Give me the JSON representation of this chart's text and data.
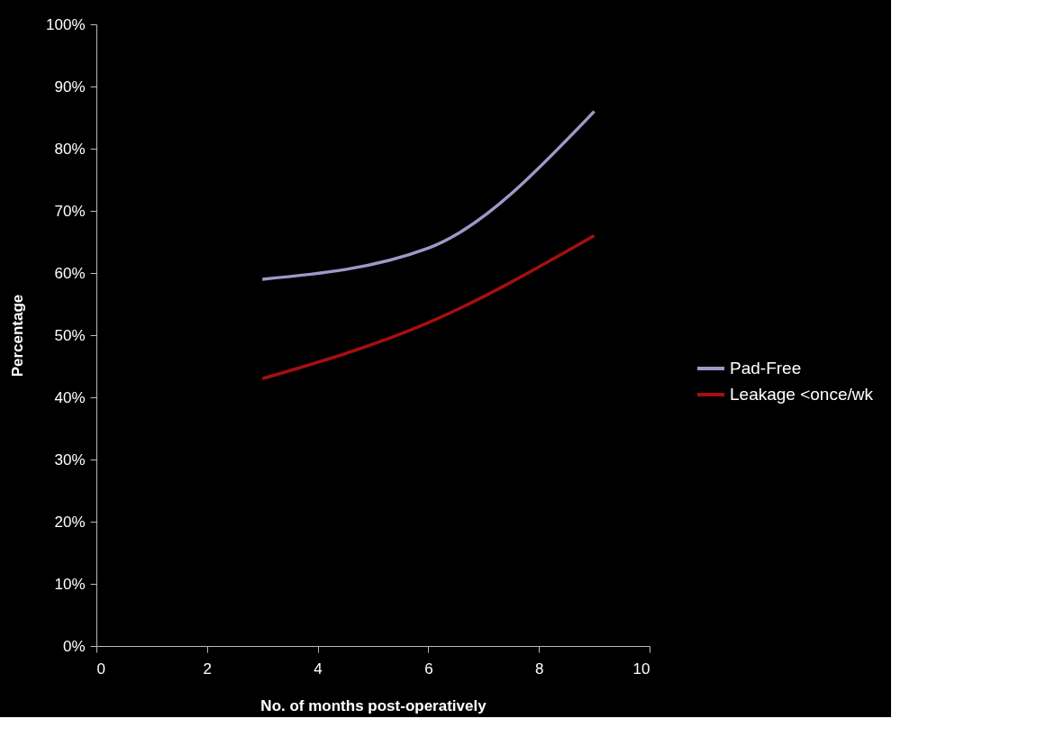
{
  "chart_data": {
    "type": "line",
    "xlabel": "No. of months post-operatively",
    "ylabel": "Percentage",
    "x": [
      3,
      6,
      9
    ],
    "series": [
      {
        "name": "Pad-Free",
        "color": "#9c99c8",
        "values": [
          59,
          64,
          86
        ]
      },
      {
        "name": "Leakage <once/wk",
        "color": "#a50f0f",
        "values": [
          43,
          52,
          66
        ]
      }
    ],
    "xlim": [
      0,
      10
    ],
    "xticks": [
      0,
      2,
      4,
      6,
      8,
      10
    ],
    "ylim": [
      0,
      100
    ],
    "yticks": [
      {
        "value": 0,
        "label": "0%"
      },
      {
        "value": 10,
        "label": "10%"
      },
      {
        "value": 20,
        "label": "20%"
      },
      {
        "value": 30,
        "label": "30%"
      },
      {
        "value": 40,
        "label": "40%"
      },
      {
        "value": 50,
        "label": "50%"
      },
      {
        "value": 60,
        "label": "60%"
      },
      {
        "value": 70,
        "label": "70%"
      },
      {
        "value": 80,
        "label": "80%"
      },
      {
        "value": 90,
        "label": "90%"
      },
      {
        "value": 100,
        "label": "100%"
      }
    ],
    "grid": false,
    "legend": "right",
    "marker": "none",
    "line_style": "solid"
  }
}
